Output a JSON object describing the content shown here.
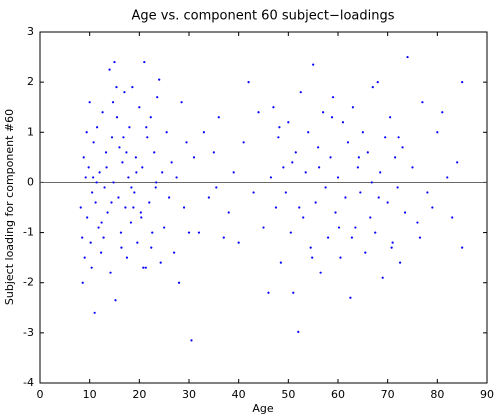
{
  "chart_data": {
    "type": "scatter",
    "title": "Age vs. component 60 subject−loadings",
    "x_label": "Age",
    "y_label": "Subject loading for component #60",
    "color": "#0000ff",
    "reference_line": 0,
    "xlim": [
      0,
      90
    ],
    "xticks": [
      0,
      10,
      20,
      30,
      40,
      50,
      60,
      70,
      80,
      90
    ],
    "ylim": [
      -4,
      3
    ],
    "yticks": [
      -4,
      -3,
      -2,
      -1,
      0,
      1,
      2,
      3
    ],
    "x": [
      8.2,
      8.5,
      8.8,
      9.0,
      9.2,
      9.5,
      9.8,
      10.0,
      10.2,
      10.5,
      10.8,
      11.0,
      11.2,
      11.5,
      11.8,
      12.0,
      12.3,
      12.6,
      13.0,
      13.3,
      13.6,
      14.0,
      14.2,
      14.5,
      14.8,
      15.0,
      15.2,
      15.5,
      15.8,
      16.0,
      16.3,
      16.6,
      17.0,
      17.2,
      17.5,
      17.8,
      18.0,
      18.3,
      18.6,
      19.0,
      19.3,
      19.6,
      20.0,
      20.3,
      20.6,
      21.0,
      21.3,
      21.6,
      22.0,
      22.3,
      22.6,
      23.0,
      23.3,
      23.6,
      24.0,
      24.3,
      24.6,
      25.0,
      25.5,
      26.0,
      26.5,
      27.0,
      27.5,
      28.0,
      28.5,
      29.0,
      29.5,
      30.0,
      8.6,
      9.4,
      10.4,
      11.4,
      12.4,
      13.4,
      14.4,
      15.4,
      16.4,
      17.4,
      18.4,
      19.4,
      20.4,
      21.4,
      22.4,
      23.4,
      10.7,
      12.8,
      14.7,
      16.8,
      18.8,
      20.8,
      30.5,
      31.0,
      32.0,
      33.0,
      34.0,
      35.0,
      35.5,
      36.0,
      37.0,
      38.0,
      39.0,
      40.0,
      41.0,
      42.0,
      43.0,
      44.0,
      45.0,
      46.0,
      46.5,
      47.0,
      47.5,
      48.0,
      48.5,
      49.0,
      49.5,
      50.0,
      50.5,
      51.0,
      51.5,
      52.0,
      52.5,
      53.0,
      53.5,
      54.0,
      54.5,
      55.0,
      55.5,
      56.0,
      56.5,
      57.0,
      57.5,
      58.0,
      58.5,
      59.0,
      59.5,
      60.0,
      60.5,
      61.0,
      61.5,
      62.0,
      62.5,
      63.0,
      63.5,
      64.0,
      64.5,
      65.0,
      65.5,
      66.0,
      66.5,
      67.0,
      67.5,
      68.0,
      68.5,
      69.0,
      69.5,
      70.0,
      70.5,
      71.0,
      71.5,
      72.0,
      72.5,
      73.0,
      73.5,
      74.0,
      75.0,
      76.0,
      77.0,
      78.0,
      79.0,
      80.0,
      81.0,
      82.0,
      83.0,
      84.0,
      85.0,
      85.0,
      48.2,
      52.2,
      56.2,
      60.2,
      64.2,
      68.2,
      72.2,
      50.8,
      54.8,
      58.8,
      62.8,
      66.8,
      70.8,
      76.5
    ],
    "values": [
      -0.5,
      -1.1,
      0.5,
      -1.5,
      0.1,
      -0.7,
      0.3,
      1.6,
      -1.2,
      -0.2,
      0.8,
      -2.6,
      -0.4,
      1.1,
      -0.9,
      0.2,
      -1.4,
      1.4,
      -0.1,
      0.6,
      -0.6,
      2.25,
      -1.8,
      0.9,
      0.0,
      2.4,
      -2.35,
      1.3,
      -0.3,
      0.7,
      -1.0,
      0.4,
      1.8,
      -0.5,
      -1.5,
      0.1,
      1.1,
      -0.8,
      1.9,
      -0.2,
      0.5,
      -1.2,
      1.5,
      -0.6,
      0.3,
      2.4,
      -1.7,
      0.9,
      -0.4,
      1.3,
      -1.0,
      0.6,
      -0.1,
      1.7,
      2.05,
      -1.6,
      0.2,
      -0.9,
      1.0,
      -0.3,
      0.4,
      -1.4,
      0.1,
      -2.0,
      1.6,
      -0.5,
      0.8,
      -1.0,
      -2.0,
      1.0,
      -1.7,
      0.0,
      -0.8,
      0.3,
      -0.4,
      1.9,
      -1.3,
      0.6,
      -0.1,
      0.2,
      -0.7,
      1.1,
      -1.3,
      0.0,
      0.1,
      -1.1,
      1.6,
      0.9,
      -0.5,
      -1.7,
      -3.15,
      0.5,
      -1.0,
      1.0,
      -0.3,
      0.6,
      -0.1,
      1.3,
      -1.1,
      -0.6,
      0.2,
      -1.2,
      0.8,
      2.0,
      -0.2,
      1.4,
      -0.9,
      -2.2,
      0.1,
      1.5,
      -0.5,
      0.9,
      -1.6,
      0.3,
      -0.2,
      1.2,
      -1.0,
      -2.2,
      0.6,
      -2.98,
      1.8,
      -0.7,
      0.2,
      1.0,
      -1.3,
      2.35,
      -0.4,
      0.7,
      -1.8,
      1.4,
      -0.1,
      -1.1,
      0.5,
      1.7,
      -0.6,
      0.1,
      -1.5,
      1.2,
      -0.3,
      0.8,
      -2.3,
      1.5,
      -0.9,
      0.3,
      -0.2,
      1.0,
      -1.4,
      0.6,
      -0.7,
      1.9,
      -1.0,
      2.0,
      0.2,
      -1.9,
      0.9,
      -0.4,
      1.3,
      -1.2,
      0.5,
      -0.1,
      -1.6,
      0.7,
      -0.6,
      2.5,
      0.3,
      -0.8,
      1.6,
      -0.2,
      -0.5,
      1.0,
      1.4,
      0.1,
      -0.7,
      0.4,
      2.0,
      -1.3,
      1.1,
      -0.5,
      0.3,
      -0.9,
      0.5,
      -0.3,
      0.9,
      0.4,
      -1.5,
      1.3,
      -1.1,
      0.0,
      -1.3,
      -1.1
    ]
  }
}
